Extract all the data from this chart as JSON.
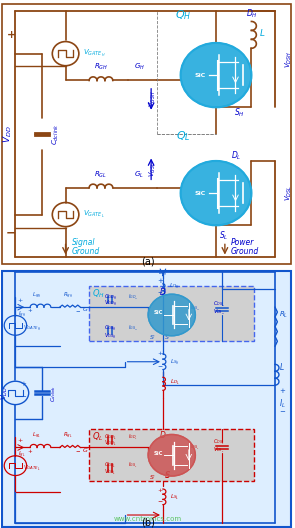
{
  "bg_color": "#ffffff",
  "fig_width": 2.95,
  "fig_height": 5.28,
  "dpi": 100,
  "dark_blue": "#0000cc",
  "cyan_blue": "#00aadd",
  "brown": "#8B4513",
  "red": "#cc0000",
  "blue": "#1155cc",
  "light_blue": "#aaccff",
  "watermark_color": "#44bb44",
  "sic_blue": "#22aadd",
  "gray_box": "#d0d0d0"
}
